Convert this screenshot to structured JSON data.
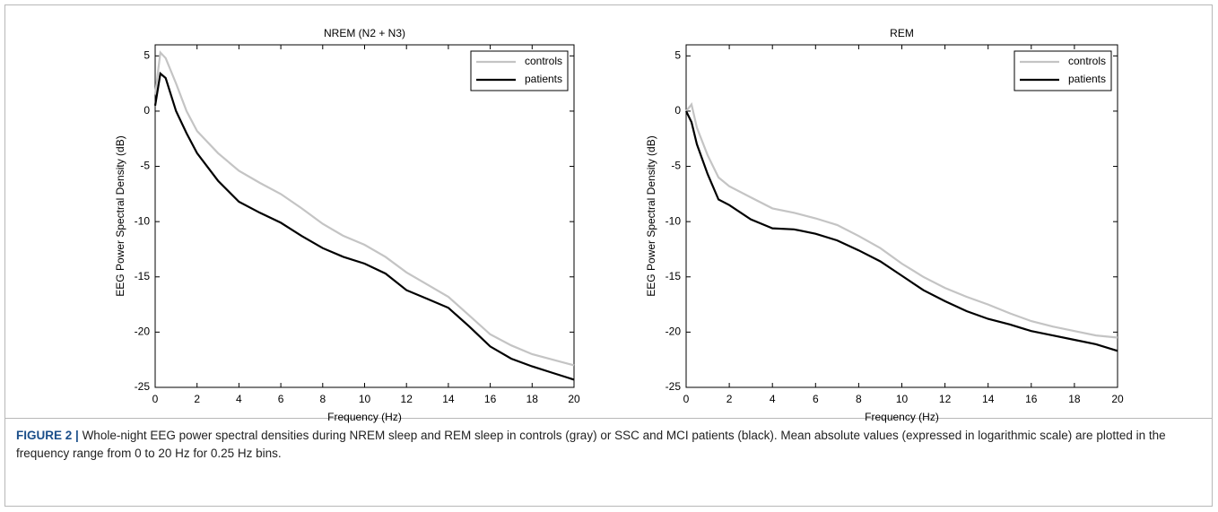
{
  "chart_data": [
    {
      "type": "line",
      "title": "NREM (N2 + N3)",
      "xlabel": "Frequency (Hz)",
      "ylabel": "EEG Power Spectral Density (dB)",
      "x": [
        0,
        0.25,
        0.5,
        1,
        1.5,
        2,
        3,
        4,
        5,
        6,
        7,
        8,
        9,
        10,
        11,
        12,
        13,
        14,
        15,
        16,
        17,
        18,
        19,
        20
      ],
      "series": [
        {
          "name": "controls",
          "color": "#c4c4c4",
          "values": [
            1.5,
            5.3,
            4.8,
            2.5,
            0,
            -1.8,
            -3.8,
            -5.4,
            -6.5,
            -7.5,
            -8.8,
            -10.2,
            -11.3,
            -12.1,
            -13.2,
            -14.6,
            -15.7,
            -16.8,
            -18.5,
            -20.2,
            -21.2,
            -22,
            -22.5,
            -23
          ]
        },
        {
          "name": "patients",
          "color": "#000000",
          "values": [
            0.5,
            3.4,
            3.0,
            0,
            -2,
            -3.8,
            -6.3,
            -8.2,
            -9.2,
            -10.1,
            -11.3,
            -12.4,
            -13.2,
            -13.8,
            -14.7,
            -16.2,
            -17.0,
            -17.8,
            -19.5,
            -21.3,
            -22.4,
            -23.1,
            -23.7,
            -24.3
          ]
        }
      ],
      "xlim": [
        0,
        20
      ],
      "xticks": [
        0,
        2,
        4,
        6,
        8,
        10,
        12,
        14,
        16,
        18,
        20
      ],
      "ylim": [
        -25,
        6
      ],
      "yticks": [
        -25,
        -20,
        -15,
        -10,
        -5,
        0,
        5
      ],
      "legend": "upper right"
    },
    {
      "type": "line",
      "title": "REM",
      "xlabel": "Frequency (Hz)",
      "ylabel": "EEG Power Spectral Density (dB)",
      "x": [
        0,
        0.25,
        0.5,
        1,
        1.5,
        2,
        3,
        4,
        5,
        6,
        7,
        8,
        9,
        10,
        11,
        12,
        13,
        14,
        15,
        16,
        17,
        18,
        19,
        20
      ],
      "series": [
        {
          "name": "controls",
          "color": "#c4c4c4",
          "values": [
            0,
            0.6,
            -1.5,
            -4,
            -6,
            -6.8,
            -7.8,
            -8.8,
            -9.2,
            -9.7,
            -10.3,
            -11.3,
            -12.4,
            -13.8,
            -15,
            -16,
            -16.8,
            -17.5,
            -18.3,
            -19,
            -19.5,
            -19.9,
            -20.3,
            -20.5
          ]
        },
        {
          "name": "patients",
          "color": "#000000",
          "values": [
            0,
            -1,
            -3,
            -5.7,
            -8.0,
            -8.5,
            -9.8,
            -10.6,
            -10.7,
            -11.1,
            -11.7,
            -12.6,
            -13.6,
            -14.9,
            -16.2,
            -17.2,
            -18.1,
            -18.8,
            -19.3,
            -19.9,
            -20.3,
            -20.7,
            -21.1,
            -21.7
          ]
        }
      ],
      "xlim": [
        0,
        20
      ],
      "xticks": [
        0,
        2,
        4,
        6,
        8,
        10,
        12,
        14,
        16,
        18,
        20
      ],
      "ylim": [
        -25,
        6
      ],
      "yticks": [
        -25,
        -20,
        -15,
        -10,
        -5,
        0,
        5
      ],
      "legend": "upper right"
    }
  ],
  "caption": {
    "label": "FIGURE 2 |",
    "text": "Whole-night EEG power spectral densities during NREM sleep and REM sleep in controls (gray) or SSC and MCI patients (black). Mean absolute values (expressed in logarithmic scale) are plotted in the frequency range from 0 to 20 Hz for 0.25 Hz bins."
  }
}
